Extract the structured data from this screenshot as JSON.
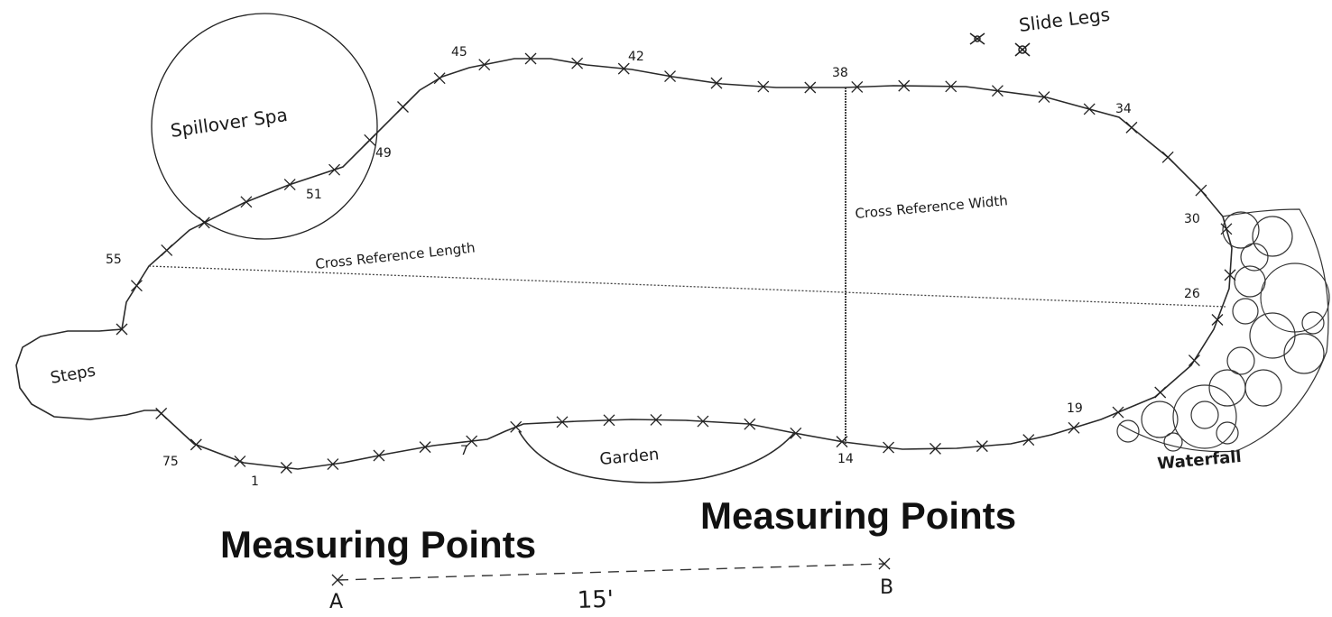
{
  "diagram": {
    "headings": [
      "Measuring Points",
      "Measuring Points"
    ],
    "features": {
      "spa": "Spillover Spa",
      "slide": "Slide Legs",
      "steps": "Steps",
      "garden": "Garden",
      "waterfall": "Waterfall"
    },
    "references": {
      "length": "Cross Reference Length",
      "width": "Cross Reference Width"
    },
    "point_labels": [
      "45",
      "42",
      "38",
      "34",
      "30",
      "26",
      "19",
      "14",
      "7",
      "1",
      "75",
      "55",
      "51",
      "49"
    ],
    "baseline": {
      "start": "A",
      "end": "B",
      "distance": "15'"
    }
  }
}
